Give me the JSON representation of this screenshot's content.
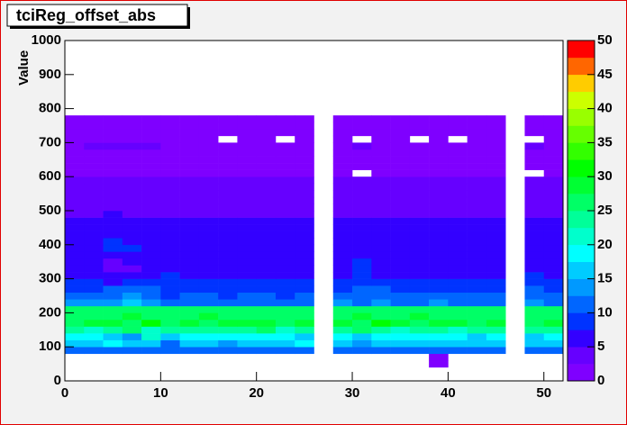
{
  "chart_data": {
    "type": "heatmap",
    "title": "tciReg_offset_abs",
    "ylabel": "Value",
    "xlim": [
      0,
      52
    ],
    "ylim": [
      0,
      1000
    ],
    "xticks": [
      0,
      10,
      20,
      30,
      40,
      50
    ],
    "yticks": [
      0,
      100,
      200,
      300,
      400,
      500,
      600,
      700,
      800,
      900,
      1000
    ],
    "zlim": [
      0,
      50
    ],
    "zticks": [
      0,
      5,
      10,
      15,
      20,
      25,
      30,
      35,
      40,
      45,
      50
    ],
    "palette": [
      "#7f00ff",
      "#6600ff",
      "#3300ff",
      "#0033ff",
      "#0066ff",
      "#0099ff",
      "#00ccff",
      "#00ffff",
      "#00ffcc",
      "#00ff99",
      "#00ff66",
      "#00ff33",
      "#00ff00",
      "#33ff00",
      "#66ff00",
      "#99ff00",
      "#ccff00",
      "#ffcc00",
      "#ff6600",
      "#ff0000"
    ],
    "xbins": [
      0,
      2,
      4,
      6,
      8,
      10,
      12,
      14,
      16,
      18,
      20,
      22,
      24,
      26,
      28,
      30,
      32,
      34,
      36,
      38,
      40,
      42,
      44,
      46,
      48,
      50,
      52
    ],
    "ybins": [
      40,
      60,
      80,
      100,
      120,
      140,
      160,
      180,
      200,
      220,
      240,
      260,
      280,
      300,
      320,
      340,
      360,
      380,
      400,
      420,
      440,
      460,
      480,
      500,
      520,
      540,
      560,
      580,
      600,
      620,
      640,
      660,
      680,
      700,
      720,
      740,
      760,
      780
    ],
    "z": [
      [
        null,
        null,
        null,
        null,
        null,
        null,
        null,
        null,
        null,
        null,
        null,
        null,
        null,
        null,
        null,
        null,
        null,
        null,
        null,
        2,
        null,
        null,
        null,
        null,
        null,
        null
      ],
      [
        null,
        null,
        null,
        null,
        null,
        null,
        null,
        null,
        null,
        null,
        null,
        null,
        null,
        null,
        null,
        null,
        null,
        null,
        null,
        2,
        null,
        null,
        null,
        null,
        null,
        null
      ],
      [
        11,
        11,
        12,
        10,
        11,
        10,
        11,
        11,
        10,
        10,
        11,
        11,
        10,
        null,
        11,
        10,
        11,
        11,
        10,
        11,
        10,
        11,
        10,
        null,
        11,
        10
      ],
      [
        17,
        16,
        18,
        15,
        17,
        12,
        17,
        15,
        14,
        17,
        17,
        17,
        18,
        null,
        16,
        14,
        17,
        17,
        16,
        17,
        17,
        17,
        16,
        null,
        17,
        16
      ],
      [
        19,
        18,
        17,
        14,
        20,
        15,
        19,
        19,
        18,
        18,
        19,
        19,
        17,
        null,
        18,
        15,
        18,
        19,
        18,
        18,
        19,
        16,
        18,
        null,
        15,
        18
      ],
      [
        24,
        22,
        23,
        25,
        22,
        24,
        23,
        24,
        24,
        23,
        25,
        22,
        24,
        null,
        23,
        25,
        24,
        22,
        23,
        24,
        22,
        24,
        23,
        null,
        24,
        23
      ],
      [
        27,
        29,
        28,
        27,
        30,
        27,
        28,
        27,
        28,
        29,
        28,
        27,
        28,
        null,
        28,
        27,
        30,
        28,
        27,
        29,
        28,
        27,
        28,
        null,
        27,
        28
      ],
      [
        26,
        27,
        26,
        28,
        27,
        26,
        27,
        28,
        27,
        26,
        27,
        26,
        27,
        null,
        27,
        28,
        26,
        27,
        28,
        26,
        27,
        26,
        27,
        null,
        26,
        27
      ],
      [
        25,
        26,
        25,
        26,
        25,
        26,
        25,
        25,
        26,
        25,
        25,
        26,
        25,
        null,
        25,
        26,
        25,
        25,
        26,
        25,
        26,
        25,
        25,
        null,
        26,
        25
      ],
      [
        13,
        13,
        14,
        15,
        13,
        10,
        12,
        12,
        12,
        12,
        12,
        12,
        12,
        null,
        13,
        12,
        13,
        12,
        12,
        13,
        12,
        12,
        12,
        null,
        14,
        12
      ],
      [
        10,
        10,
        12,
        13,
        12,
        9,
        10,
        10,
        9,
        10,
        10,
        9,
        10,
        null,
        11,
        10,
        12,
        10,
        10,
        11,
        10,
        10,
        10,
        null,
        12,
        10
      ],
      [
        9,
        9,
        10,
        11,
        10,
        8,
        9,
        8,
        9,
        9,
        8,
        9,
        9,
        null,
        9,
        12,
        11,
        9,
        8,
        9,
        9,
        8,
        9,
        null,
        11,
        9
      ],
      [
        8,
        8,
        7,
        8,
        8,
        9,
        8,
        8,
        8,
        8,
        8,
        8,
        8,
        null,
        8,
        9,
        8,
        8,
        8,
        8,
        8,
        8,
        8,
        null,
        9,
        8
      ],
      [
        7,
        7,
        6,
        6,
        6,
        8,
        7,
        7,
        7,
        7,
        7,
        7,
        7,
        null,
        7,
        9,
        7,
        7,
        7,
        7,
        7,
        7,
        7,
        null,
        9,
        7
      ],
      [
        6,
        5,
        4,
        4,
        5,
        6,
        6,
        6,
        6,
        6,
        6,
        6,
        6,
        null,
        6,
        8,
        6,
        6,
        6,
        6,
        6,
        6,
        6,
        null,
        7,
        6
      ],
      [
        5,
        5,
        4,
        5,
        5,
        6,
        5,
        5,
        5,
        5,
        5,
        5,
        5,
        null,
        5,
        9,
        5,
        5,
        5,
        5,
        5,
        5,
        5,
        null,
        7,
        5
      ],
      [
        5,
        5,
        5,
        5,
        5,
        5,
        6,
        6,
        6,
        6,
        6,
        6,
        6,
        null,
        6,
        7,
        6,
        6,
        6,
        6,
        6,
        6,
        6,
        null,
        6,
        6
      ],
      [
        5,
        7,
        8,
        8,
        5,
        6,
        6,
        6,
        6,
        6,
        6,
        6,
        6,
        null,
        6,
        7,
        7,
        6,
        6,
        6,
        6,
        6,
        6,
        null,
        7,
        6
      ],
      [
        5,
        7,
        8,
        7,
        5,
        5,
        5,
        5,
        5,
        5,
        5,
        5,
        5,
        null,
        5,
        5,
        5,
        5,
        5,
        5,
        5,
        5,
        5,
        null,
        5,
        5
      ],
      [
        5,
        5,
        5,
        5,
        5,
        5,
        5,
        5,
        5,
        5,
        5,
        5,
        5,
        null,
        5,
        5,
        5,
        5,
        5,
        5,
        5,
        5,
        5,
        null,
        5,
        5
      ],
      [
        5,
        5,
        5,
        5,
        5,
        5,
        5,
        5,
        5,
        5,
        5,
        5,
        5,
        null,
        5,
        5,
        5,
        5,
        5,
        5,
        5,
        5,
        5,
        null,
        5,
        5
      ],
      [
        6,
        6,
        5,
        5,
        6,
        6,
        6,
        6,
        6,
        6,
        6,
        6,
        6,
        null,
        6,
        6,
        6,
        6,
        6,
        6,
        6,
        6,
        6,
        null,
        6,
        6
      ],
      [
        4,
        4,
        5,
        4,
        4,
        4,
        4,
        4,
        4,
        4,
        4,
        4,
        4,
        null,
        4,
        4,
        4,
        4,
        4,
        4,
        4,
        4,
        4,
        null,
        4,
        4
      ],
      [
        4,
        4,
        4,
        4,
        4,
        4,
        4,
        4,
        4,
        4,
        4,
        4,
        4,
        null,
        4,
        4,
        4,
        4,
        4,
        4,
        4,
        4,
        4,
        null,
        4,
        4
      ],
      [
        4,
        3,
        4,
        4,
        3,
        4,
        4,
        4,
        4,
        4,
        4,
        4,
        4,
        null,
        4,
        4,
        4,
        4,
        4,
        4,
        4,
        4,
        4,
        null,
        4,
        4
      ],
      [
        3,
        3,
        4,
        3,
        3,
        3,
        3,
        3,
        3,
        3,
        3,
        3,
        3,
        null,
        3,
        4,
        3,
        3,
        3,
        3,
        3,
        3,
        3,
        null,
        3,
        3
      ],
      [
        3,
        3,
        3,
        3,
        3,
        3,
        3,
        4,
        4,
        3,
        3,
        3,
        3,
        null,
        3,
        3,
        3,
        3,
        3,
        3,
        3,
        3,
        3,
        null,
        3,
        3
      ],
      [
        3,
        3,
        3,
        3,
        3,
        3,
        3,
        3,
        3,
        3,
        3,
        3,
        3,
        null,
        3,
        3,
        3,
        3,
        3,
        3,
        3,
        3,
        3,
        null,
        3,
        3
      ],
      [
        2,
        2,
        2,
        2,
        2,
        2,
        2,
        2,
        2,
        2,
        2,
        2,
        2,
        null,
        2,
        null,
        2,
        2,
        2,
        2,
        2,
        2,
        2,
        null,
        null,
        2
      ],
      [
        2,
        2,
        2,
        2,
        2,
        2,
        2,
        2,
        2,
        2,
        2,
        2,
        2,
        null,
        2,
        2,
        2,
        2,
        2,
        2,
        2,
        2,
        2,
        null,
        2,
        2
      ],
      [
        2,
        2,
        2,
        2,
        2,
        2,
        2,
        2,
        2,
        2,
        2,
        2,
        2,
        null,
        2,
        2,
        2,
        2,
        2,
        2,
        2,
        2,
        2,
        null,
        2,
        2
      ],
      [
        2,
        2,
        2,
        2,
        2,
        2,
        2,
        2,
        2,
        2,
        2,
        2,
        2,
        null,
        2,
        2,
        2,
        2,
        2,
        2,
        2,
        2,
        2,
        null,
        2,
        2
      ],
      [
        2,
        3,
        3,
        3,
        3,
        2,
        2,
        2,
        2,
        2,
        2,
        2,
        2,
        null,
        2,
        3,
        2,
        2,
        2,
        2,
        2,
        2,
        2,
        null,
        3,
        2
      ],
      [
        2,
        2,
        2,
        2,
        2,
        2,
        2,
        2,
        null,
        2,
        2,
        null,
        2,
        null,
        2,
        null,
        2,
        2,
        null,
        2,
        null,
        2,
        2,
        null,
        null,
        2
      ],
      [
        2,
        2,
        2,
        2,
        2,
        2,
        2,
        2,
        2,
        2,
        2,
        2,
        2,
        null,
        2,
        2,
        2,
        2,
        2,
        2,
        2,
        2,
        2,
        null,
        2,
        2
      ],
      [
        2,
        2,
        2,
        2,
        2,
        2,
        2,
        2,
        2,
        2,
        2,
        2,
        2,
        null,
        2,
        2,
        2,
        2,
        2,
        2,
        2,
        2,
        2,
        null,
        2,
        2
      ],
      [
        2,
        2,
        2,
        2,
        2,
        2,
        2,
        2,
        2,
        2,
        2,
        2,
        2,
        null,
        2,
        2,
        2,
        2,
        2,
        2,
        2,
        2,
        2,
        null,
        2,
        2
      ]
    ]
  }
}
